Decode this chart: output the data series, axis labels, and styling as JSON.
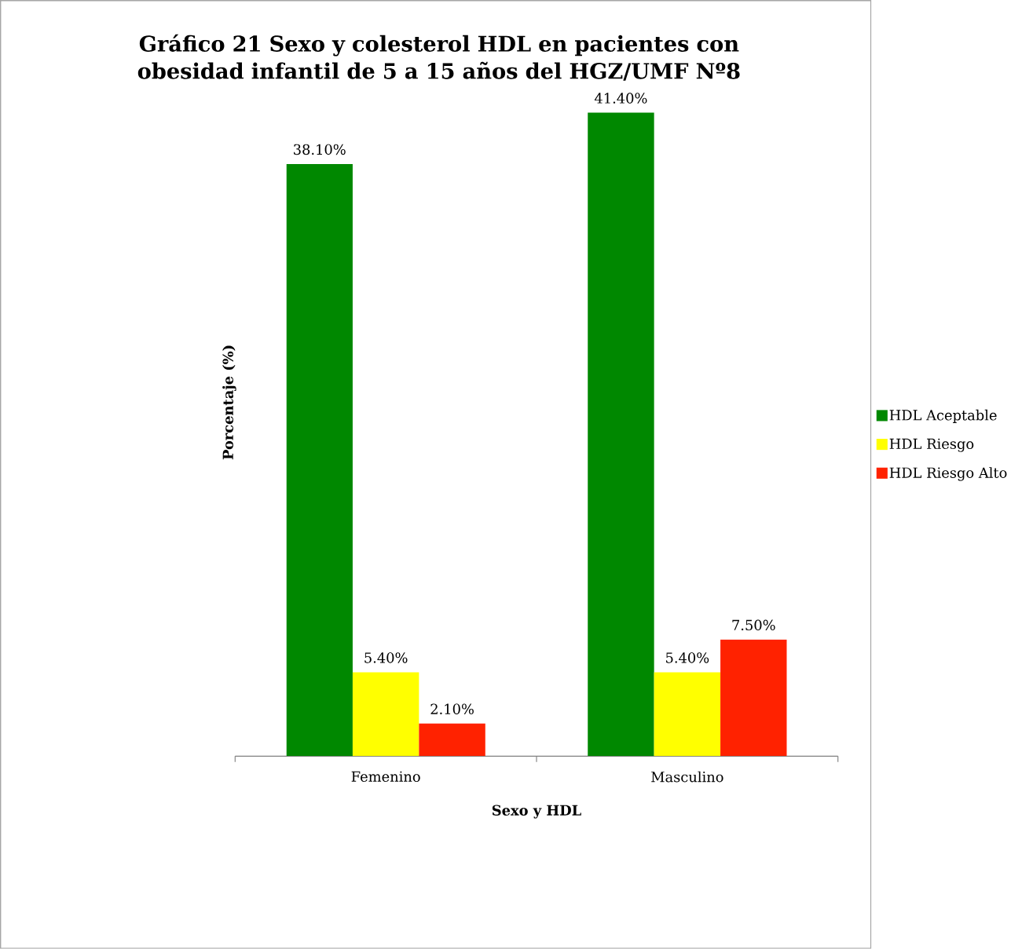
{
  "chart_data": {
    "type": "bar",
    "title": "Gráfico 21 Sexo y colesterol HDL en pacientes con obesidad infantil de 5 a 15 años del HGZ/UMF Nº8",
    "xlabel": "Sexo y HDL",
    "ylabel": "Porcentaje (%)",
    "categories": [
      "Femenino",
      "Masculino"
    ],
    "series": [
      {
        "name": "HDL Aceptable",
        "color": "#008800",
        "values": [
          38.1,
          41.4
        ],
        "value_labels": [
          "38.10%",
          "41.40%"
        ]
      },
      {
        "name": "HDL Riesgo",
        "color": "#ffff00",
        "values": [
          5.4,
          5.4
        ],
        "value_labels": [
          "5.40%",
          "5.40%"
        ]
      },
      {
        "name": "HDL Riesgo Alto",
        "color": "#ff2200",
        "values": [
          2.1,
          7.5
        ],
        "value_labels": [
          "2.10%",
          "7.50%"
        ]
      }
    ],
    "legend": "right"
  }
}
